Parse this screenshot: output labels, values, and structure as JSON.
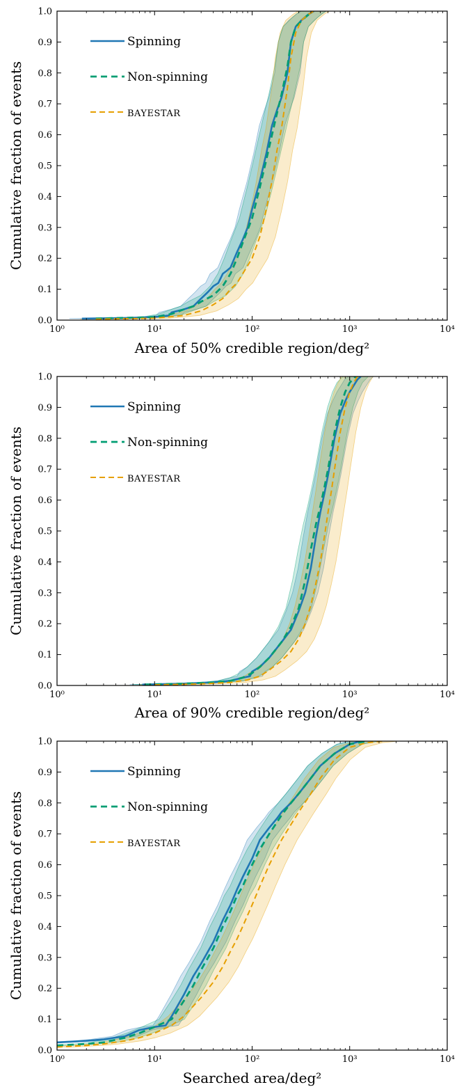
{
  "colors": {
    "spinning": "#1f77b4",
    "non_spinning": "#009e73",
    "bayestar": "#e69f00"
  },
  "chart_data": [
    {
      "type": "line",
      "xscale": "log",
      "xlim": [
        1,
        10000
      ],
      "ylim": [
        0,
        1
      ],
      "xlabel": "Area of 50% credible region/deg²",
      "ylabel": "Cumulative fraction of events",
      "xticks": [
        "10⁰",
        "10¹",
        "10²",
        "10³",
        "10⁴"
      ],
      "yticks": [
        "0.0",
        "0.1",
        "0.2",
        "0.3",
        "0.4",
        "0.5",
        "0.6",
        "0.7",
        "0.8",
        "0.9",
        "1.0"
      ],
      "legend_position": "upper-left",
      "series": [
        {
          "name": "Spinning",
          "style": "solid",
          "x": [
            1.8,
            5,
            10,
            14,
            15,
            20,
            25,
            30,
            35,
            40,
            45,
            50,
            55,
            60,
            70,
            80,
            90,
            100,
            120,
            140,
            160,
            180,
            200,
            230,
            250,
            280,
            320,
            380,
            430
          ],
          "y": [
            0.005,
            0.007,
            0.01,
            0.015,
            0.025,
            0.035,
            0.045,
            0.07,
            0.09,
            0.11,
            0.12,
            0.15,
            0.16,
            0.17,
            0.22,
            0.26,
            0.3,
            0.36,
            0.45,
            0.54,
            0.63,
            0.68,
            0.72,
            0.8,
            0.9,
            0.95,
            0.97,
            0.99,
            1.0
          ]
        },
        {
          "name": "Non-spinning",
          "style": "dashed",
          "x": [
            2.5,
            10,
            15,
            20,
            25,
            30,
            40,
            50,
            60,
            70,
            80,
            100,
            120,
            140,
            160,
            180,
            200,
            230,
            250,
            280,
            350,
            420
          ],
          "y": [
            0.005,
            0.01,
            0.02,
            0.035,
            0.045,
            0.06,
            0.08,
            0.11,
            0.15,
            0.2,
            0.25,
            0.33,
            0.43,
            0.52,
            0.6,
            0.67,
            0.73,
            0.82,
            0.9,
            0.95,
            0.98,
            1.0
          ]
        },
        {
          "name": "BAYESTAR",
          "style": "dashed",
          "x": [
            2.5,
            10,
            20,
            30,
            40,
            50,
            60,
            70,
            80,
            100,
            120,
            140,
            160,
            180,
            200,
            230,
            250,
            280,
            320,
            380,
            430
          ],
          "y": [
            0.003,
            0.006,
            0.015,
            0.03,
            0.05,
            0.07,
            0.1,
            0.12,
            0.15,
            0.2,
            0.27,
            0.36,
            0.45,
            0.55,
            0.62,
            0.75,
            0.85,
            0.93,
            0.97,
            0.99,
            1.0
          ]
        }
      ]
    },
    {
      "type": "line",
      "xscale": "log",
      "xlim": [
        1,
        10000
      ],
      "ylim": [
        0,
        1
      ],
      "xlabel": "Area of 90% credible region/deg²",
      "ylabel": "Cumulative fraction of events",
      "xticks": [
        "10⁰",
        "10¹",
        "10²",
        "10³",
        "10⁴"
      ],
      "yticks": [
        "0.0",
        "0.1",
        "0.2",
        "0.3",
        "0.4",
        "0.5",
        "0.6",
        "0.7",
        "0.8",
        "0.9",
        "1.0"
      ],
      "legend_position": "upper-left",
      "series": [
        {
          "name": "Spinning",
          "style": "solid",
          "x": [
            7.5,
            20,
            40,
            60,
            80,
            95,
            100,
            120,
            150,
            200,
            250,
            300,
            350,
            400,
            450,
            500,
            550,
            600,
            700,
            800,
            900,
            1000,
            1200,
            1300
          ],
          "y": [
            0.003,
            0.006,
            0.01,
            0.015,
            0.025,
            0.03,
            0.045,
            0.06,
            0.09,
            0.14,
            0.18,
            0.24,
            0.3,
            0.38,
            0.48,
            0.56,
            0.62,
            0.68,
            0.8,
            0.88,
            0.92,
            0.95,
            0.99,
            1.0
          ]
        },
        {
          "name": "Non-spinning",
          "style": "dashed",
          "x": [
            8,
            20,
            40,
            60,
            80,
            100,
            120,
            150,
            200,
            250,
            300,
            350,
            400,
            450,
            500,
            550,
            600,
            700,
            800,
            900,
            1000,
            1150
          ],
          "y": [
            0.003,
            0.006,
            0.01,
            0.015,
            0.025,
            0.04,
            0.06,
            0.09,
            0.14,
            0.19,
            0.25,
            0.34,
            0.44,
            0.52,
            0.58,
            0.64,
            0.7,
            0.82,
            0.9,
            0.95,
            0.98,
            1.0
          ]
        },
        {
          "name": "BAYESTAR",
          "style": "dashed",
          "x": [
            10,
            30,
            60,
            90,
            120,
            150,
            200,
            250,
            300,
            350,
            400,
            450,
            500,
            550,
            600,
            650,
            700,
            800,
            900,
            1000,
            1100,
            1200
          ],
          "y": [
            0.002,
            0.005,
            0.01,
            0.018,
            0.03,
            0.05,
            0.08,
            0.11,
            0.15,
            0.2,
            0.26,
            0.33,
            0.4,
            0.48,
            0.56,
            0.63,
            0.7,
            0.82,
            0.9,
            0.95,
            0.98,
            1.0
          ]
        }
      ]
    },
    {
      "type": "line",
      "xscale": "log",
      "xlim": [
        1,
        10000
      ],
      "ylim": [
        0,
        1
      ],
      "xlabel": "Searched area/deg²",
      "ylabel": "Cumulative fraction of events",
      "xticks": [
        "10⁰",
        "10¹",
        "10²",
        "10³",
        "10⁴"
      ],
      "yticks": [
        "0.0",
        "0.1",
        "0.2",
        "0.3",
        "0.4",
        "0.5",
        "0.6",
        "0.7",
        "0.8",
        "0.9",
        "1.0"
      ],
      "legend_position": "upper-left",
      "series": [
        {
          "name": "Spinning",
          "style": "solid",
          "x": [
            1,
            2,
            3,
            5,
            7,
            10,
            13,
            15,
            20,
            25,
            30,
            40,
            50,
            60,
            70,
            80,
            100,
            120,
            150,
            180,
            200,
            250,
            300,
            400,
            500,
            700,
            1000,
            1300
          ],
          "y": [
            0.025,
            0.03,
            0.035,
            0.045,
            0.065,
            0.075,
            0.08,
            0.11,
            0.18,
            0.24,
            0.28,
            0.35,
            0.42,
            0.47,
            0.52,
            0.56,
            0.62,
            0.68,
            0.72,
            0.75,
            0.77,
            0.8,
            0.83,
            0.88,
            0.92,
            0.96,
            0.99,
            1.0
          ]
        },
        {
          "name": "Non-spinning",
          "style": "dashed",
          "x": [
            1,
            2,
            3,
            5,
            7,
            10,
            15,
            20,
            25,
            30,
            40,
            50,
            60,
            70,
            80,
            100,
            120,
            150,
            200,
            250,
            300,
            400,
            500,
            700,
            1000,
            1500
          ],
          "y": [
            0.015,
            0.02,
            0.025,
            0.04,
            0.055,
            0.075,
            0.1,
            0.16,
            0.21,
            0.26,
            0.33,
            0.4,
            0.45,
            0.5,
            0.53,
            0.6,
            0.65,
            0.7,
            0.76,
            0.8,
            0.83,
            0.88,
            0.92,
            0.96,
            0.99,
            1.0
          ]
        },
        {
          "name": "BAYESTAR",
          "style": "dashed",
          "x": [
            1,
            2,
            3,
            5,
            7,
            10,
            15,
            20,
            30,
            40,
            50,
            60,
            70,
            80,
            100,
            120,
            150,
            200,
            250,
            300,
            400,
            500,
            700,
            1000,
            1500,
            2200
          ],
          "y": [
            0.01,
            0.015,
            0.02,
            0.03,
            0.04,
            0.055,
            0.08,
            0.11,
            0.17,
            0.22,
            0.27,
            0.32,
            0.36,
            0.4,
            0.47,
            0.53,
            0.6,
            0.68,
            0.73,
            0.77,
            0.83,
            0.88,
            0.94,
            0.98,
            0.995,
            1.0
          ]
        }
      ]
    }
  ]
}
